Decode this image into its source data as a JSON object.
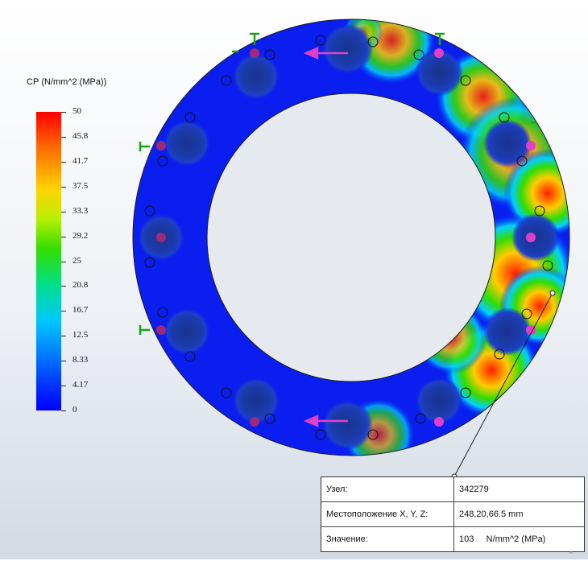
{
  "legend": {
    "title": "СР (N/mm^2 (MPa))",
    "ticks": [
      "50",
      "45.8",
      "41.7",
      "37.5",
      "33.3",
      "29.2",
      "25",
      "20.8",
      "16.7",
      "12.5",
      "8.33",
      "4.17",
      "0"
    ],
    "colors": {
      "max": "#ff0000",
      "mid": "#33dd00",
      "min": "#0000ff"
    }
  },
  "probe": {
    "rows": [
      {
        "label": "Узел:",
        "value": "342279"
      },
      {
        "label": "Местоположение X, Y, Z:",
        "value": "248,20,66.5 mm"
      },
      {
        "label": "Значение:",
        "value": "103     N/mm^2 (MPa)"
      }
    ]
  },
  "icons": [
    "fixture-icon",
    "force-arrow-icon",
    "probe-pointer-icon",
    "collapse-icon"
  ],
  "colors": {
    "ring_base": "#0a1ef0",
    "hole_dark": "#12329e",
    "force_arrow": "#e040c8",
    "fixture": "#1aa31a"
  }
}
